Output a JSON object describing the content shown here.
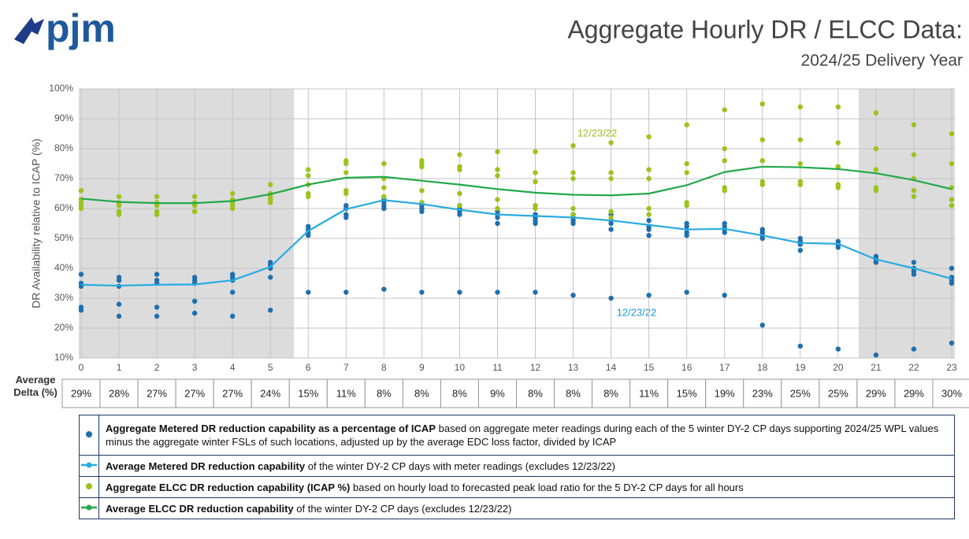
{
  "header": {
    "logo": "pjm"
  },
  "chart_data": {
    "type": "scatter",
    "title": "Aggregate Hourly DR / ELCC Data:",
    "subtitle": "2024/25 Delivery Year",
    "y_label": "DR Availability relative to ICAP (%)",
    "x": [
      0,
      1,
      2,
      3,
      4,
      5,
      6,
      7,
      8,
      9,
      10,
      11,
      12,
      13,
      14,
      15,
      16,
      17,
      18,
      19,
      20,
      21,
      22,
      23
    ],
    "xlim": [
      0,
      23
    ],
    "ylim": [
      10,
      100
    ],
    "yticks": [
      {
        "value": 10,
        "label": "10%"
      },
      {
        "value": 20,
        "label": "20%"
      },
      {
        "value": 30,
        "label": "30%"
      },
      {
        "value": 40,
        "label": "40%"
      },
      {
        "value": 50,
        "label": "50%"
      },
      {
        "value": 60,
        "label": "60%"
      },
      {
        "value": 70,
        "label": "70%"
      },
      {
        "value": 80,
        "label": "80%"
      },
      {
        "value": 90,
        "label": "90%"
      },
      {
        "value": 100,
        "label": "100%"
      }
    ],
    "grid": true,
    "series": [
      {
        "name": "Aggregate Metered DR reduction capability as a percentage of ICAP",
        "description": "based on aggregate meter readings during each of the 5 winter DY-2 CP days supporting 2024/25 WPL values minus the aggregate winter FSLs of such locations, adjusted up by the average EDC loss factor, divided by ICAP",
        "type": "scatter",
        "color": "#1f6fae",
        "values": [
          [
            38,
            35,
            34,
            27,
            26
          ],
          [
            37,
            36,
            34,
            28,
            24
          ],
          [
            38,
            36,
            35,
            27,
            24
          ],
          [
            37,
            36,
            35,
            29,
            25
          ],
          [
            38,
            37,
            36,
            32,
            24
          ],
          [
            42,
            41,
            40,
            37,
            26
          ],
          [
            54,
            53,
            52,
            51,
            32
          ],
          [
            61,
            60,
            58,
            57,
            32
          ],
          [
            63,
            62,
            61,
            60,
            33
          ],
          [
            62,
            61,
            60,
            59,
            32
          ],
          [
            61,
            60,
            59,
            58,
            32
          ],
          [
            59,
            58,
            57,
            55,
            32
          ],
          [
            58,
            57,
            56,
            55,
            32
          ],
          [
            58,
            57,
            56,
            55,
            31
          ],
          [
            58,
            56,
            55,
            53,
            30
          ],
          [
            56,
            54,
            53,
            51,
            31
          ],
          [
            55,
            54,
            52,
            51,
            32
          ],
          [
            55,
            54,
            53,
            52,
            31
          ],
          [
            53,
            52,
            51,
            50,
            21
          ],
          [
            50,
            49,
            48,
            46,
            14
          ],
          [
            49,
            48,
            48,
            47,
            13
          ],
          [
            44,
            43,
            42,
            42,
            11
          ],
          [
            42,
            40,
            39,
            38,
            13
          ],
          [
            40,
            37,
            36,
            35,
            15
          ]
        ]
      },
      {
        "name": "Average Metered DR reduction capability",
        "description": "of the winter DY-2 CP days with meter readings (excludes 12/23/22)",
        "type": "line",
        "color": "#29abe2",
        "values": [
          34.5,
          34.2,
          34.5,
          34.6,
          36,
          40.5,
          52.5,
          59.8,
          62.8,
          61.5,
          59.6,
          58,
          57.5,
          57,
          56,
          54.5,
          53,
          53.2,
          51,
          48.5,
          48.2,
          43,
          40,
          36.5
        ]
      },
      {
        "name": "Aggregate ELCC DR reduction capability (ICAP %)",
        "description": "based on hourly load to forecasted peak load ratio for the 5 DY-2 CP days for all hours",
        "type": "scatter",
        "color": "#9ac31c",
        "values": [
          [
            66,
            63,
            62,
            61,
            60
          ],
          [
            64,
            62,
            61,
            59,
            58
          ],
          [
            64,
            62,
            61,
            59,
            58
          ],
          [
            64,
            62,
            61,
            59,
            59
          ],
          [
            65,
            63,
            62,
            61,
            60
          ],
          [
            68,
            65,
            64,
            63,
            62
          ],
          [
            73,
            71,
            68,
            65,
            64
          ],
          [
            76,
            75,
            72,
            66,
            65
          ],
          [
            75,
            75,
            70,
            67,
            64
          ],
          [
            76,
            75,
            74,
            66,
            62
          ],
          [
            78,
            74,
            73,
            65,
            61
          ],
          [
            79,
            73,
            71,
            63,
            60
          ],
          [
            79,
            72,
            69,
            61,
            60
          ],
          [
            81,
            72,
            70,
            60,
            58
          ],
          [
            82,
            72,
            70,
            59,
            57
          ],
          [
            84,
            73,
            70,
            60,
            58
          ],
          [
            88,
            75,
            72,
            62,
            61
          ],
          [
            93,
            80,
            76,
            67,
            66
          ],
          [
            95,
            83,
            76,
            69,
            68
          ],
          [
            94,
            83,
            75,
            69,
            68
          ],
          [
            94,
            82,
            74,
            68,
            67
          ],
          [
            92,
            80,
            73,
            67,
            66
          ],
          [
            88,
            78,
            70,
            66,
            64
          ],
          [
            85,
            75,
            67,
            63,
            61
          ]
        ]
      },
      {
        "name": "Average ELCC DR reduction capability",
        "description": "of the winter DY-2 CP days (excludes 12/23/22)",
        "type": "line",
        "color": "#22a84a",
        "values": [
          63.3,
          62.2,
          61.8,
          61.8,
          62.5,
          64.8,
          68,
          70.3,
          70.6,
          69.3,
          68,
          66.5,
          65.3,
          64.6,
          64.4,
          65,
          67.8,
          72.2,
          74,
          73.8,
          73.2,
          71.8,
          69.5,
          66.5
        ]
      }
    ],
    "annotations": [
      "12/23/22",
      "12/23/22"
    ]
  },
  "table": {
    "label": "Average Delta (%)",
    "cells": [
      "29%",
      "28%",
      "27%",
      "27%",
      "27%",
      "24%",
      "15%",
      "11%",
      "8%",
      "8%",
      "8%",
      "9%",
      "8%",
      "8%",
      "8%",
      "11%",
      "15%",
      "19%",
      "23%",
      "25%",
      "25%",
      "29%",
      "29%",
      "30%"
    ]
  }
}
